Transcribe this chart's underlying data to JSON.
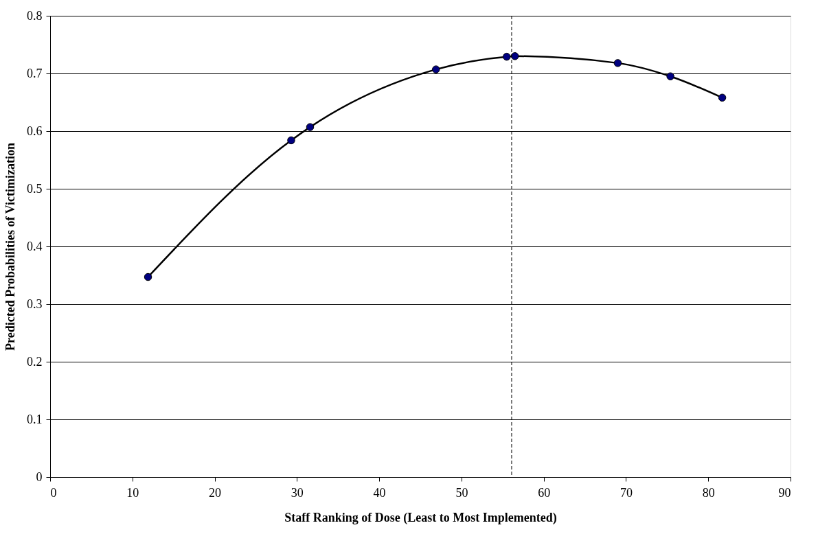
{
  "chart_data": {
    "type": "line",
    "xlabel": "Staff Ranking of Dose (Least to Most Implemented)",
    "ylabel": "Predicted Probabilities of Victimization",
    "x": [
      11.9,
      29.3,
      31.6,
      46.9,
      55.5,
      56.5,
      69.0,
      75.4,
      81.7
    ],
    "series": [
      {
        "color": "#000080",
        "values": [
          0.347,
          0.584,
          0.607,
          0.707,
          0.729,
          0.73,
          0.718,
          0.695,
          0.658
        ]
      }
    ],
    "xlim": [
      0,
      90
    ],
    "xticks": [
      0,
      10,
      20,
      30,
      40,
      50,
      60,
      70,
      80,
      90
    ],
    "ylim": [
      0,
      0.8
    ],
    "yticks": [
      0,
      0.1,
      0.2,
      0.3,
      0.4,
      0.5,
      0.6,
      0.7,
      0.8
    ],
    "ref_lines": [
      {
        "axis": "x",
        "value": 56.1,
        "color": "#000000",
        "line_style": "dashed"
      }
    ],
    "grid": "y",
    "marker": "circle",
    "line_style": "solid"
  }
}
